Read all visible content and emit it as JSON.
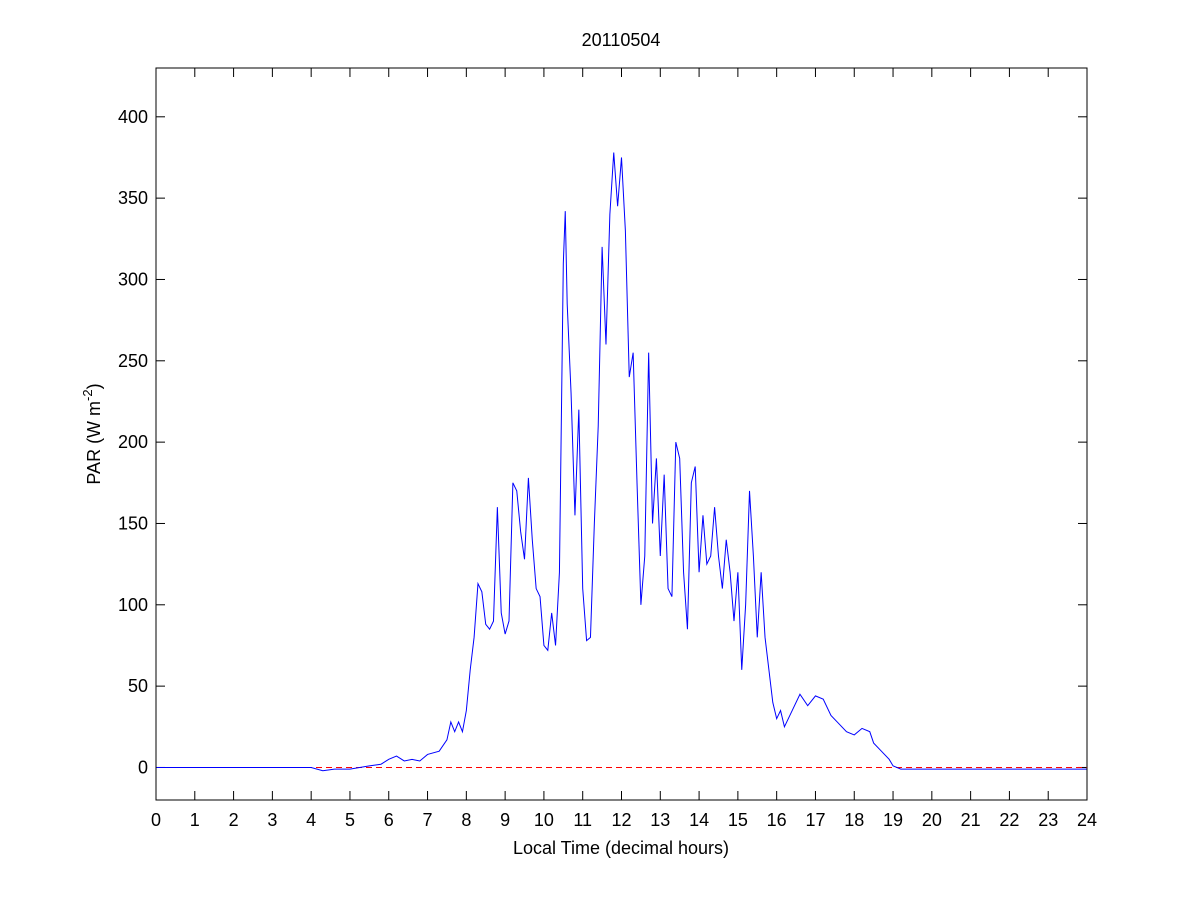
{
  "chart_data": {
    "type": "line",
    "title": "20110504",
    "xlabel": "Local Time (decimal hours)",
    "ylabel": {
      "text": "PAR (W m",
      "superscript": "-2",
      "suffix": ")"
    },
    "xlim": [
      0,
      24
    ],
    "ylim": [
      -20,
      430
    ],
    "xticks": [
      0,
      1,
      2,
      3,
      4,
      5,
      6,
      7,
      8,
      9,
      10,
      11,
      12,
      13,
      14,
      15,
      16,
      17,
      18,
      19,
      20,
      21,
      22,
      23,
      24
    ],
    "yticks": [
      0,
      50,
      100,
      150,
      200,
      250,
      300,
      350,
      400
    ],
    "reference_line": {
      "value": 0,
      "color": "#ff0000",
      "style": "dashed"
    },
    "series": [
      {
        "color": "#0000ff",
        "x": [
          0,
          4,
          4.3,
          4.6,
          5,
          5.5,
          5.8,
          6,
          6.2,
          6.4,
          6.6,
          6.8,
          7,
          7.3,
          7.5,
          7.6,
          7.7,
          7.8,
          7.9,
          8,
          8.1,
          8.2,
          8.3,
          8.4,
          8.5,
          8.6,
          8.7,
          8.8,
          8.9,
          9,
          9.1,
          9.2,
          9.3,
          9.4,
          9.5,
          9.6,
          9.7,
          9.8,
          9.9,
          10,
          10.1,
          10.2,
          10.3,
          10.4,
          10.5,
          10.55,
          10.6,
          10.7,
          10.8,
          10.9,
          11,
          11.1,
          11.2,
          11.3,
          11.4,
          11.5,
          11.6,
          11.7,
          11.8,
          11.9,
          12,
          12.1,
          12.2,
          12.3,
          12.4,
          12.5,
          12.6,
          12.7,
          12.8,
          12.9,
          13,
          13.1,
          13.2,
          13.3,
          13.4,
          13.5,
          13.6,
          13.7,
          13.8,
          13.9,
          14,
          14.1,
          14.2,
          14.3,
          14.4,
          14.5,
          14.6,
          14.7,
          14.8,
          14.9,
          15,
          15.1,
          15.2,
          15.3,
          15.4,
          15.5,
          15.6,
          15.7,
          15.8,
          15.9,
          16,
          16.1,
          16.2,
          16.4,
          16.6,
          16.8,
          17,
          17.2,
          17.4,
          17.6,
          17.8,
          18,
          18.2,
          18.4,
          18.5,
          18.7,
          18.9,
          19,
          19.2,
          19.5,
          24
        ],
        "values": [
          0,
          0,
          -2,
          -1,
          -1,
          1,
          2,
          5,
          7,
          4,
          5,
          4,
          8,
          10,
          17,
          28,
          22,
          28,
          22,
          35,
          60,
          80,
          113,
          108,
          88,
          85,
          90,
          160,
          95,
          82,
          90,
          175,
          170,
          145,
          128,
          178,
          140,
          110,
          105,
          75,
          72,
          95,
          75,
          120,
          310,
          342,
          285,
          230,
          155,
          220,
          110,
          78,
          80,
          150,
          210,
          320,
          260,
          340,
          378,
          345,
          375,
          330,
          240,
          255,
          175,
          100,
          130,
          255,
          150,
          190,
          130,
          180,
          110,
          105,
          200,
          190,
          120,
          85,
          175,
          185,
          120,
          155,
          125,
          130,
          160,
          130,
          110,
          140,
          120,
          90,
          120,
          60,
          100,
          170,
          130,
          80,
          120,
          80,
          60,
          40,
          30,
          35,
          25,
          35,
          45,
          38,
          44,
          42,
          32,
          27,
          22,
          20,
          24,
          22,
          15,
          10,
          5,
          1,
          -1,
          -1,
          -1
        ]
      }
    ]
  }
}
